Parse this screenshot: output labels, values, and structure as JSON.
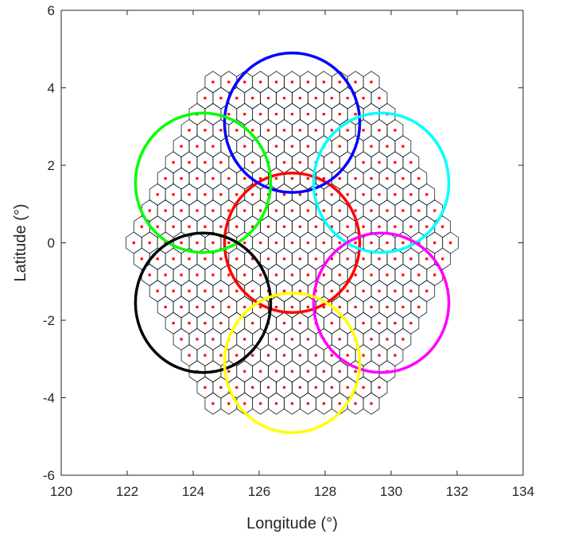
{
  "chart_data": {
    "type": "scatter",
    "title": "",
    "xlabel": "Longitude (°)",
    "ylabel": "Latitude (°)",
    "xlim": [
      120,
      134
    ],
    "ylim": [
      -6,
      6
    ],
    "xticks": [
      120,
      122,
      124,
      126,
      128,
      130,
      132,
      134
    ],
    "yticks": [
      -6,
      -4,
      -2,
      0,
      2,
      4,
      6
    ],
    "x_tick_labels": [
      "120",
      "122",
      "124",
      "126",
      "128",
      "130",
      "132",
      "134"
    ],
    "y_tick_labels": [
      "-6",
      "-4",
      "-2",
      "0",
      "2",
      "4",
      "6"
    ],
    "grid": false,
    "hex_cell_grid": {
      "center": [
        127,
        0
      ],
      "rings": 10,
      "row_spacing_deg": 0.415,
      "column_spacing_deg": 0.48,
      "cell_edge_color": "#000000",
      "cell_center_marker_color": "#ff0000"
    },
    "beams": [
      {
        "color": "#ff0000",
        "center": [
          127,
          0
        ],
        "radius_x_deg": 2.05,
        "radius_y_deg": 1.8
      },
      {
        "color": "#0000ff",
        "center": [
          127,
          3.1
        ],
        "radius_x_deg": 2.05,
        "radius_y_deg": 1.8
      },
      {
        "color": "#00ff00",
        "center": [
          124.3,
          1.55
        ],
        "radius_x_deg": 2.05,
        "radius_y_deg": 1.8
      },
      {
        "color": "#00ffff",
        "center": [
          129.7,
          1.55
        ],
        "radius_x_deg": 2.05,
        "radius_y_deg": 1.8
      },
      {
        "color": "#000000",
        "center": [
          124.3,
          -1.55
        ],
        "radius_x_deg": 2.05,
        "radius_y_deg": 1.8
      },
      {
        "color": "#ff00ff",
        "center": [
          129.7,
          -1.55
        ],
        "radius_x_deg": 2.05,
        "radius_y_deg": 1.8
      },
      {
        "color": "#ffff00",
        "center": [
          127,
          -3.1
        ],
        "radius_x_deg": 2.05,
        "radius_y_deg": 1.8
      }
    ]
  }
}
